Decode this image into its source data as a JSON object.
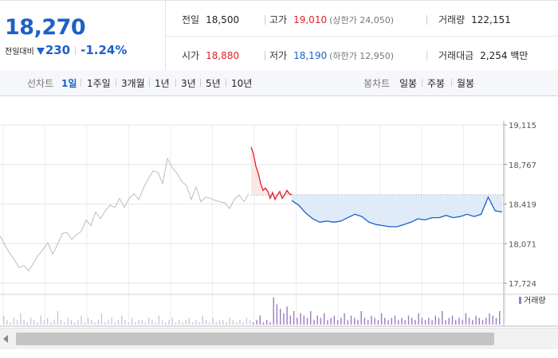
{
  "summary": {
    "price": "18,270",
    "change_label": "전일대비",
    "change_value": "230",
    "change_pct": "-1.24%"
  },
  "stats": {
    "prev_close_label": "전일",
    "prev_close": "18,500",
    "high_label": "고가",
    "high": "19,010",
    "upper_limit": "(상한가 24,050)",
    "volume_label": "거래량",
    "volume": "122,151",
    "open_label": "시가",
    "open": "18,880",
    "low_label": "저가",
    "low": "18,190",
    "lower_limit": "(하한가 12,950)",
    "turnover_label": "거래대금",
    "turnover": "2,254 백만"
  },
  "tabs": {
    "line_title": "선차트",
    "line_periods": [
      "1일",
      "1주일",
      "3개월",
      "1년",
      "3년",
      "5년",
      "10년"
    ],
    "active_period": "1일",
    "candle_title": "봉차트",
    "candle_periods": [
      "일봉",
      "주봉",
      "월봉"
    ]
  },
  "colors": {
    "up": "#e0202a",
    "down": "#1d60c8",
    "previous_day": "#bdbdbd",
    "volume": "#9b7bbf"
  },
  "chart_data": {
    "type": "line",
    "y_ticks": [
      "19,115",
      "18,767",
      "18,419",
      "18,071",
      "17,724"
    ],
    "ylim": [
      17724,
      19115
    ],
    "reference_line": 18500,
    "volume_legend": "거래량",
    "grid": true,
    "series": [
      {
        "values": [
          18140,
          18060,
          17990,
          17930,
          17860,
          17880,
          17830,
          17900,
          17970,
          18020,
          18080,
          17980,
          18060,
          18160,
          18170,
          18110,
          18150,
          18180,
          18280,
          18230,
          18350,
          18290,
          18360,
          18410,
          18390,
          18470,
          18390,
          18470,
          18510,
          18460,
          18560,
          18640,
          18710,
          18700,
          18600,
          18820,
          18740,
          18690,
          18620,
          18580,
          18460,
          18570,
          18440,
          18480,
          18470,
          18450,
          18440,
          18430,
          18380,
          18460,
          18500,
          18440,
          18510
        ]
      },
      {
        "values": [
          18920,
          18860,
          18750,
          18690,
          18600,
          18540,
          18560,
          18530,
          18470,
          18520,
          18460,
          18500,
          18530,
          18470,
          18500,
          18540,
          18510,
          18500
        ]
      },
      {
        "values": [
          18450,
          18410,
          18340,
          18290,
          18260,
          18270,
          18260,
          18270,
          18300,
          18330,
          18310,
          18260,
          18240,
          18230,
          18220,
          18220,
          18240,
          18260,
          18290,
          18280,
          18300,
          18300,
          18320,
          18300,
          18310,
          18330,
          18310,
          18330,
          18480,
          18360,
          18350
        ]
      }
    ],
    "volume": [
      4,
      2,
      1,
      3,
      2,
      5,
      2,
      1,
      3,
      2,
      1,
      4,
      2,
      3,
      1,
      2,
      6,
      2,
      1,
      3,
      2,
      1,
      2,
      4,
      1,
      3,
      2,
      1,
      2,
      5,
      1,
      2,
      3,
      1,
      2,
      4,
      2,
      1,
      3,
      1,
      2,
      2,
      1,
      3,
      2,
      1,
      4,
      2,
      1,
      2,
      3,
      1,
      2,
      1,
      2,
      3,
      1,
      2,
      1,
      4,
      2,
      1,
      3,
      1,
      2,
      2,
      1,
      3,
      2,
      1,
      2,
      1,
      3,
      2,
      1,
      2,
      4,
      1,
      2,
      1,
      12,
      9,
      7,
      5,
      8,
      4,
      6,
      3,
      5,
      4,
      3,
      6,
      2,
      4,
      3,
      5,
      2,
      3,
      4,
      2,
      3,
      5,
      2,
      4,
      3,
      2,
      6,
      3,
      2,
      4,
      3,
      2,
      5,
      3,
      2,
      3,
      4,
      2,
      3,
      2,
      4,
      3,
      2,
      5,
      3,
      2,
      3,
      2,
      4,
      3,
      6,
      2,
      3,
      4,
      2,
      3,
      2,
      5,
      3,
      2,
      4,
      3,
      2,
      3,
      5,
      4,
      3,
      6
    ]
  }
}
